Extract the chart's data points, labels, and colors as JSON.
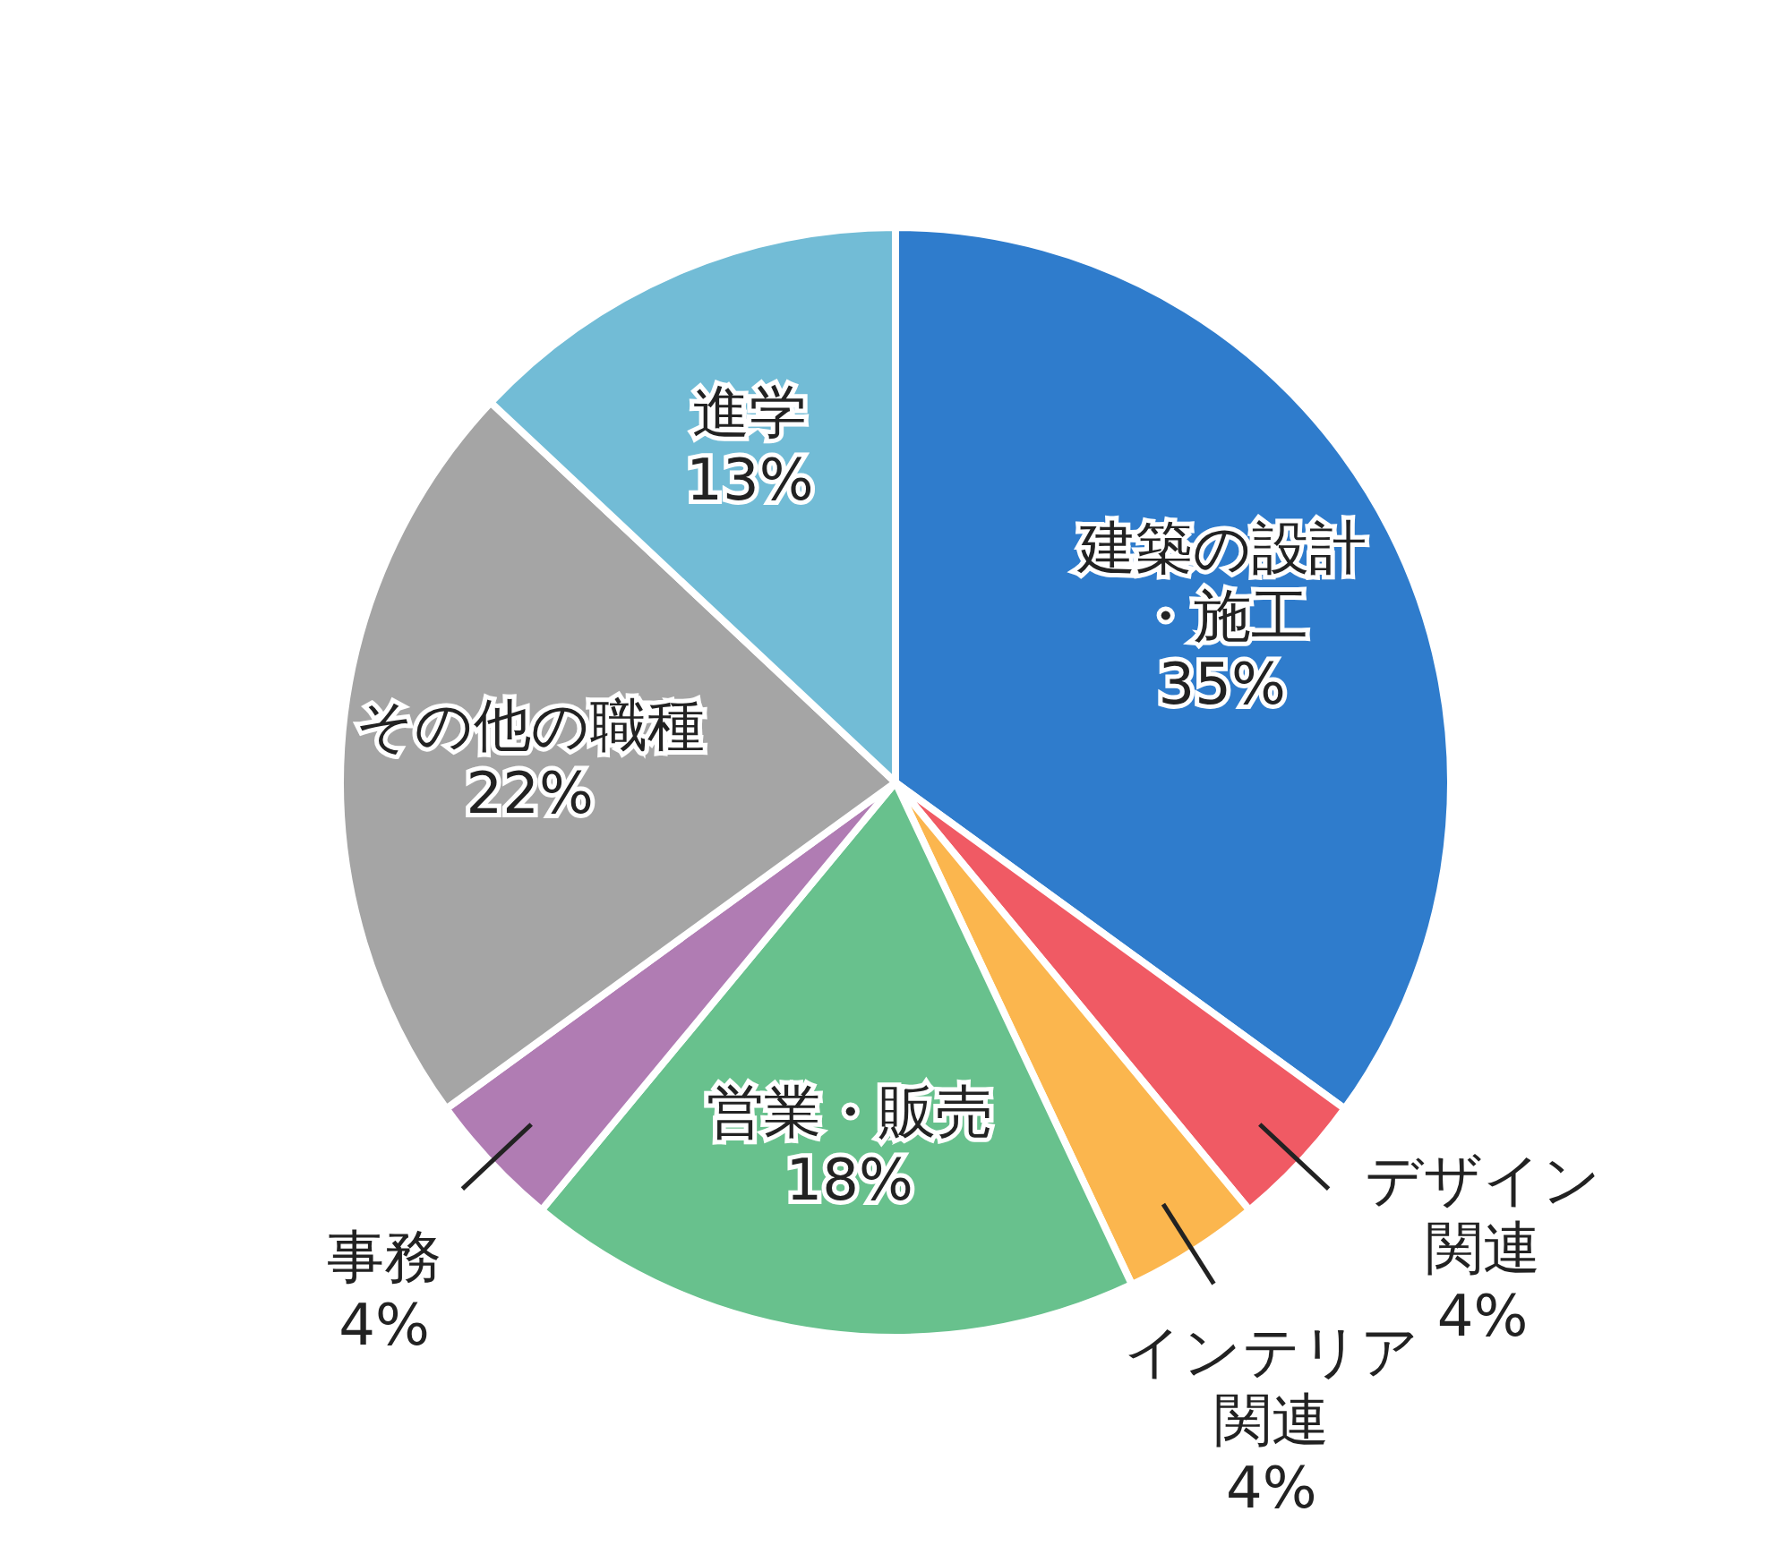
{
  "chart_data": {
    "type": "pie",
    "categories": [
      "建築の設計・施工",
      "デザイン関連",
      "インテリア関連",
      "営業・販売",
      "事務",
      "その他の職種",
      "進学"
    ],
    "values": [
      35,
      4,
      4,
      18,
      4,
      22,
      13
    ],
    "colors": [
      "#2f7ccc",
      "#f05a64",
      "#fbb64e",
      "#68c18d",
      "#b07cb3",
      "#a5a5a5",
      "#72bcd6"
    ],
    "value_labels": [
      "35%",
      "4%",
      "4%",
      "18%",
      "4%",
      "22%",
      "13%"
    ]
  }
}
